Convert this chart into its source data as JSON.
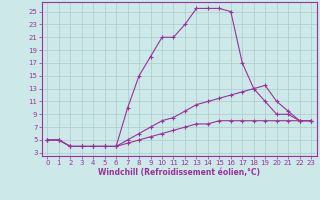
{
  "xlabel": "Windchill (Refroidissement éolien,°C)",
  "bg_color": "#cce8e8",
  "grid_color": "#aacccc",
  "line_color": "#993399",
  "spine_color": "#993399",
  "xlim": [
    -0.5,
    23.5
  ],
  "ylim": [
    2.5,
    26.5
  ],
  "yticks": [
    3,
    5,
    7,
    9,
    11,
    13,
    15,
    17,
    19,
    21,
    23,
    25
  ],
  "xticks": [
    0,
    1,
    2,
    3,
    4,
    5,
    6,
    7,
    8,
    9,
    10,
    11,
    12,
    13,
    14,
    15,
    16,
    17,
    18,
    19,
    20,
    21,
    22,
    23
  ],
  "line1_x": [
    0,
    1,
    2,
    3,
    4,
    5,
    6,
    7,
    8,
    9,
    10,
    11,
    12,
    13,
    14,
    15,
    16,
    17,
    18,
    19,
    20,
    21,
    22,
    23
  ],
  "line1_y": [
    5,
    5,
    4,
    4,
    4,
    4,
    4,
    10,
    15,
    18,
    21,
    21,
    23,
    25.5,
    25.5,
    25.5,
    25,
    17,
    13,
    11,
    9,
    9,
    8,
    8
  ],
  "line2_x": [
    0,
    1,
    2,
    3,
    4,
    5,
    6,
    7,
    8,
    9,
    10,
    11,
    12,
    13,
    14,
    15,
    16,
    17,
    18,
    19,
    20,
    21,
    22,
    23
  ],
  "line2_y": [
    5,
    5,
    4,
    4,
    4,
    4,
    4,
    5,
    6,
    7,
    8,
    8.5,
    9.5,
    10.5,
    11,
    11.5,
    12,
    12.5,
    13,
    13.5,
    11,
    9.5,
    8,
    8
  ],
  "line3_x": [
    0,
    1,
    2,
    3,
    4,
    5,
    6,
    7,
    8,
    9,
    10,
    11,
    12,
    13,
    14,
    15,
    16,
    17,
    18,
    19,
    20,
    21,
    22,
    23
  ],
  "line3_y": [
    5,
    5,
    4,
    4,
    4,
    4,
    4,
    4.5,
    5,
    5.5,
    6,
    6.5,
    7,
    7.5,
    7.5,
    8,
    8,
    8,
    8,
    8,
    8,
    8,
    8,
    8
  ],
  "tick_fontsize": 5,
  "xlabel_fontsize": 5.5,
  "linewidth": 0.8,
  "markersize": 3.0,
  "markeredgewidth": 0.8
}
